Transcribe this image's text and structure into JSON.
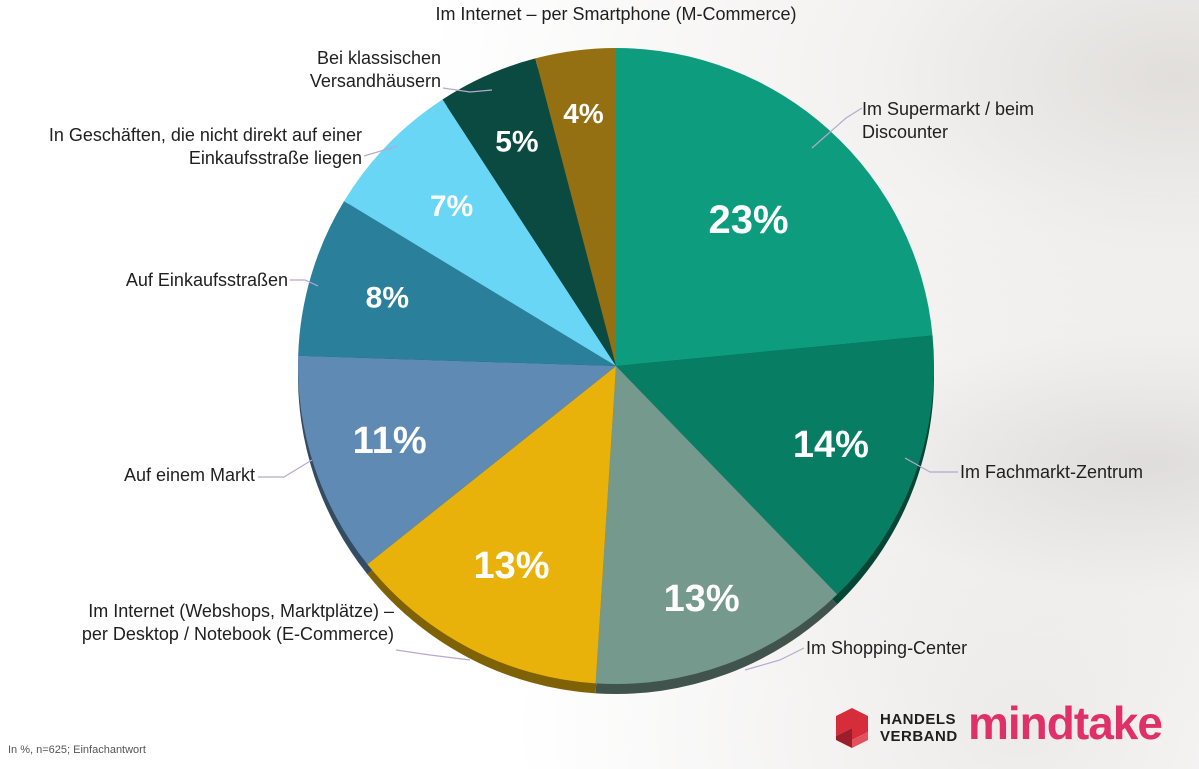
{
  "chart_data": {
    "type": "pie",
    "unit": "%",
    "slices": [
      {
        "label": "Im Supermarkt / beim Discounter",
        "value": 23,
        "value_label": "23%",
        "color": "#0d9d7e"
      },
      {
        "label": "Im Fachmarkt-Zentrum",
        "value": 14,
        "value_label": "14%",
        "color": "#077d63"
      },
      {
        "label": "Im Shopping-Center",
        "value": 13,
        "value_label": "13%",
        "color": "#75998c"
      },
      {
        "label": "Im Internet (Webshops, Marktplätze) – per Desktop / Notebook (E-Commerce)",
        "value": 13,
        "value_label": "13%",
        "color": "#e9b20a"
      },
      {
        "label": "Auf einem Markt",
        "value": 11,
        "value_label": "11%",
        "color": "#5f8ab3"
      },
      {
        "label": "Auf Einkaufsstraßen",
        "value": 8,
        "value_label": "8%",
        "color": "#2a7f9b"
      },
      {
        "label": "In Geschäften, die nicht direkt auf einer Einkaufsstraße liegen",
        "value": 7,
        "value_label": "7%",
        "color": "#6ad6f6"
      },
      {
        "label": "Bei klassischen Versandhäusern",
        "value": 5,
        "value_label": "5%",
        "color": "#0b4a40"
      },
      {
        "label": "Im Internet – per Smartphone (M-Commerce)",
        "value": 4,
        "value_label": "4%",
        "color": "#947012"
      }
    ],
    "legend": "none",
    "labels": "outside with leader lines"
  },
  "footnote": "In %, n=625; Einfachantwort",
  "logos": {
    "handelsverband_line1": "HANDELS",
    "handelsverband_line2": "VERBAND",
    "mindtake": "mindtake"
  },
  "colors": {
    "label_text": "#1f1f1f",
    "leader_line": "#b6a9cf",
    "value_text": "#ffffff",
    "handelsverband_red": "#d62d3b",
    "mindtake_pink": "#e0306a"
  }
}
